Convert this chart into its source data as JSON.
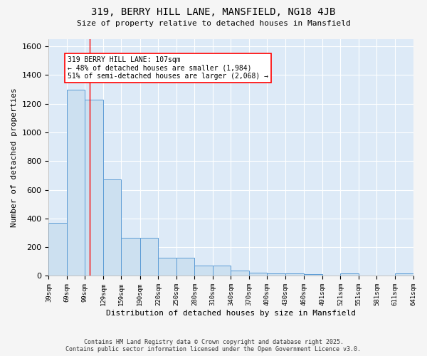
{
  "title": "319, BERRY HILL LANE, MANSFIELD, NG18 4JB",
  "subtitle": "Size of property relative to detached houses in Mansfield",
  "xlabel": "Distribution of detached houses by size in Mansfield",
  "ylabel": "Number of detached properties",
  "bin_edges": [
    39,
    69,
    99,
    129,
    159,
    190,
    220,
    250,
    280,
    310,
    340,
    370,
    400,
    430,
    460,
    491,
    521,
    551,
    581,
    611,
    641
  ],
  "bar_heights": [
    370,
    1300,
    1230,
    670,
    265,
    265,
    125,
    125,
    70,
    70,
    35,
    20,
    15,
    15,
    10,
    0,
    15,
    0,
    0,
    15
  ],
  "bar_color": "#cce0f0",
  "bar_edge_color": "#5b9bd5",
  "background_color": "#ddeaf7",
  "fig_background": "#f5f5f5",
  "grid_color": "#ffffff",
  "red_line_x": 107,
  "ylim": [
    0,
    1650
  ],
  "yticks": [
    0,
    200,
    400,
    600,
    800,
    1000,
    1200,
    1400,
    1600
  ],
  "annotation_text": "319 BERRY HILL LANE: 107sqm\n← 48% of detached houses are smaller (1,984)\n51% of semi-detached houses are larger (2,068) →",
  "footer_line1": "Contains HM Land Registry data © Crown copyright and database right 2025.",
  "footer_line2": "Contains public sector information licensed under the Open Government Licence v3.0.",
  "tick_labels": [
    "39sqm",
    "69sqm",
    "99sqm",
    "129sqm",
    "159sqm",
    "190sqm",
    "220sqm",
    "250sqm",
    "280sqm",
    "310sqm",
    "340sqm",
    "370sqm",
    "400sqm",
    "430sqm",
    "460sqm",
    "491sqm",
    "521sqm",
    "551sqm",
    "581sqm",
    "611sqm",
    "641sqm"
  ]
}
